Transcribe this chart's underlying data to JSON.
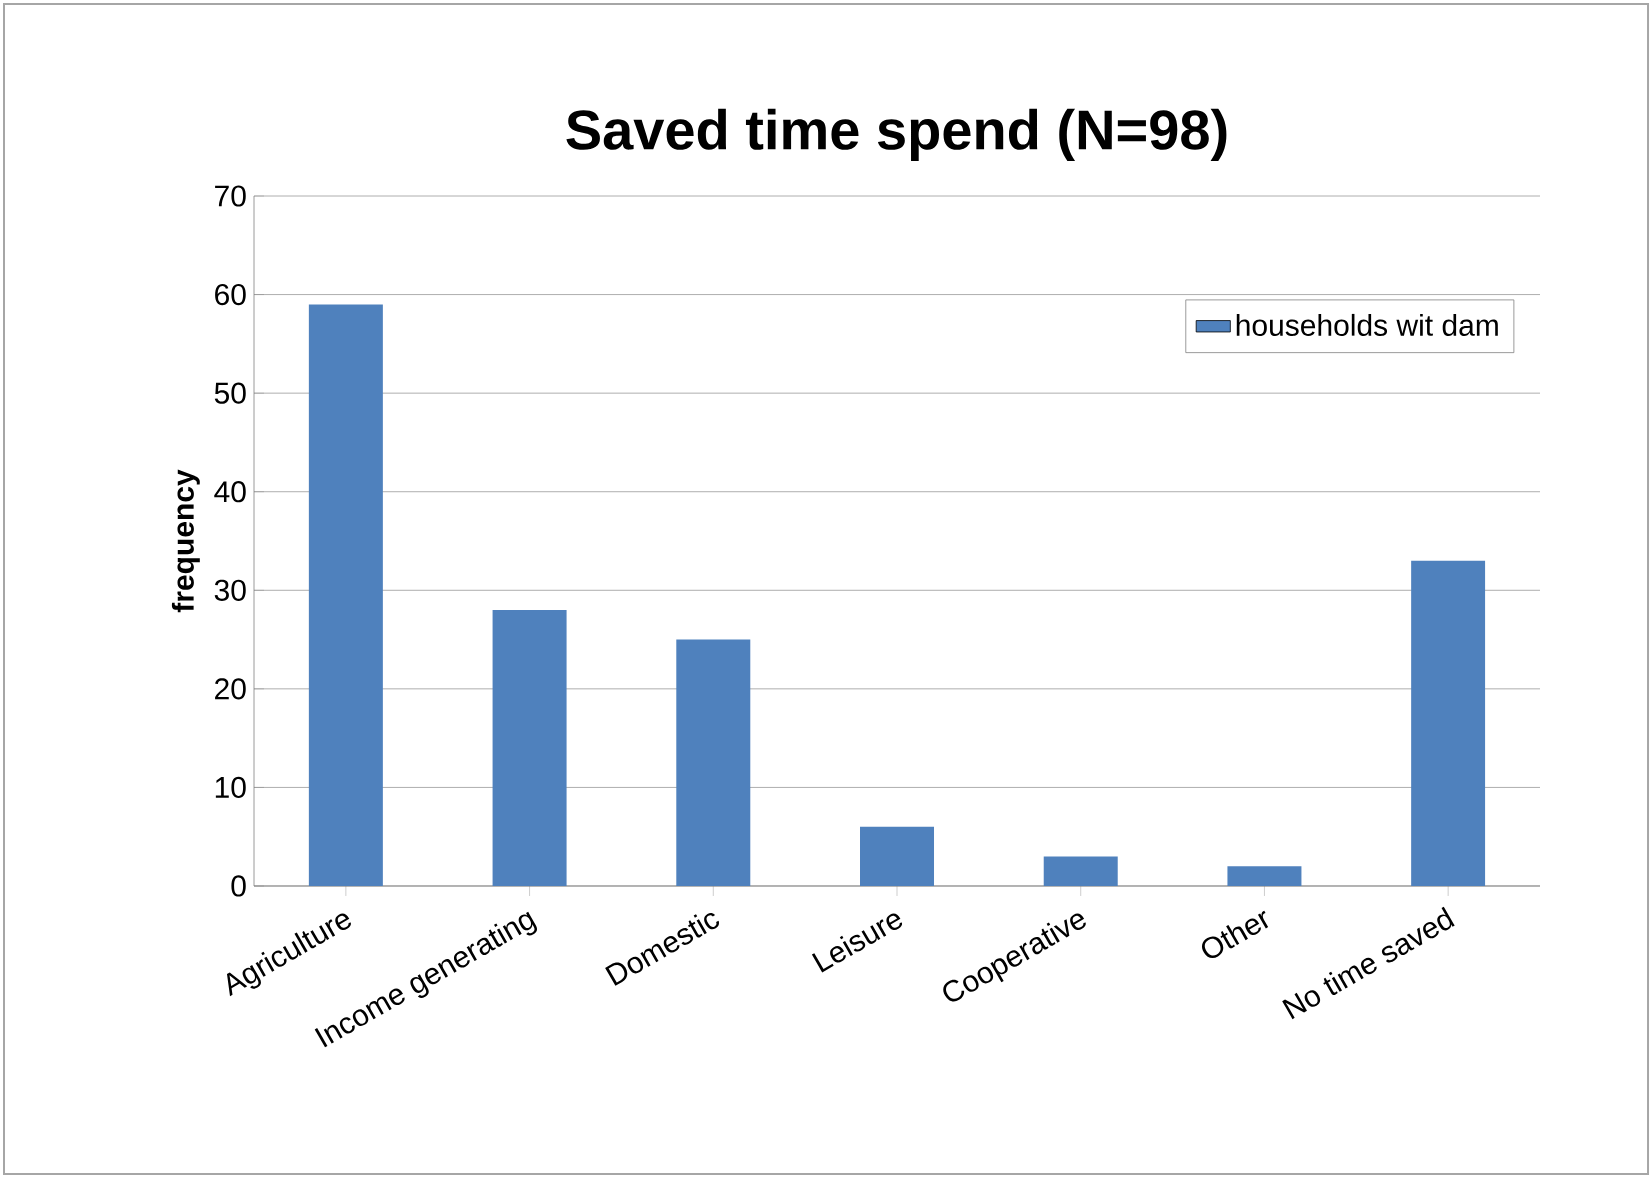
{
  "chart_data": {
    "type": "bar",
    "title": "Saved time spend (N=98)",
    "ylabel": "frequency",
    "categories": [
      "Agriculture",
      "Income generating",
      "Domestic",
      "Leisure",
      "Cooperative",
      "Other",
      "No time saved"
    ],
    "series": [
      {
        "name": "households wit dam",
        "color": "#4f81bd",
        "values": [
          59,
          28,
          25,
          6,
          3,
          2,
          33
        ]
      }
    ],
    "ylim": [
      0,
      70
    ],
    "yticks": [
      0,
      10,
      20,
      30,
      40,
      50,
      60,
      70
    ],
    "grid": "y",
    "legend": "top right"
  }
}
